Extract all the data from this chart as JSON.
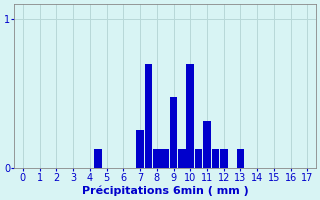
{
  "categories": [
    4.5,
    7.0,
    7.5,
    8.0,
    8.5,
    9.0,
    9.5,
    10.0,
    10.5,
    11.0,
    11.5,
    12.0,
    13.0
  ],
  "values": [
    0.13,
    0.26,
    0.7,
    0.13,
    0.13,
    0.48,
    0.13,
    0.7,
    0.13,
    0.32,
    0.13,
    0.13,
    0.13
  ],
  "bar_color": "#0000cc",
  "bg_color": "#d8f4f4",
  "grid_color": "#b8d8d8",
  "xlabel": "Précipitations 6min ( mm )",
  "ylim": [
    0,
    1.1
  ],
  "xlim": [
    -0.5,
    17.5
  ],
  "yticks": [
    0,
    1
  ],
  "xticks": [
    0,
    1,
    2,
    3,
    4,
    5,
    6,
    7,
    8,
    9,
    10,
    11,
    12,
    13,
    14,
    15,
    16,
    17
  ],
  "xlabel_fontsize": 8,
  "tick_fontsize": 7,
  "bar_width": 0.45
}
